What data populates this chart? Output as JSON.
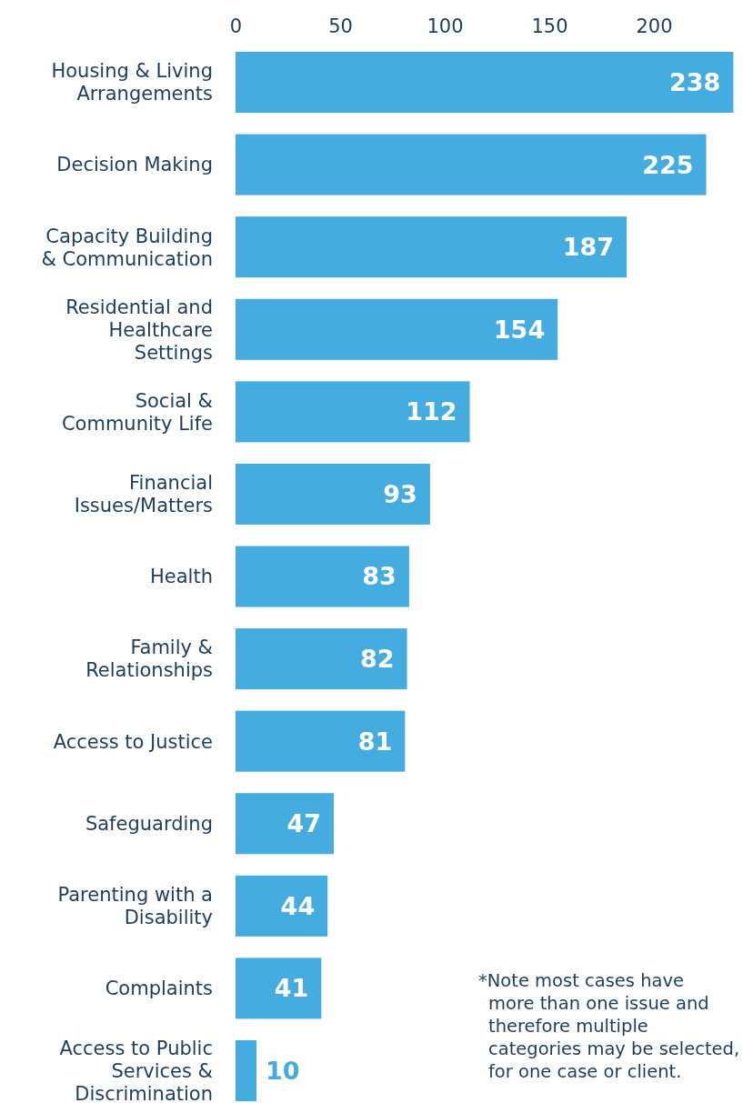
{
  "chart_data": {
    "type": "bar",
    "orientation": "horizontal",
    "categories": [
      "Housing & Living Arrangements",
      "Decision Making",
      "Capacity Building & Communication",
      "Residential and Healthcare Settings",
      "Social & Community Life",
      "Financial Issues/Matters",
      "Health",
      "Family & Relationships",
      "Access to Justice",
      "Safeguarding",
      "Parenting with a Disability",
      "Complaints",
      "Access to Public Services & Discrimination"
    ],
    "values": [
      238,
      225,
      187,
      154,
      112,
      93,
      83,
      82,
      81,
      47,
      44,
      41,
      10
    ],
    "color": "#45ace0",
    "xlim": [
      0,
      240
    ],
    "xticks": [
      0,
      50,
      100,
      150,
      200
    ],
    "grid": false,
    "data_labels": true,
    "annotations": [
      "*Note most cases have more than one issue and therefore multiple categories may be selected, for one case or client."
    ]
  }
}
